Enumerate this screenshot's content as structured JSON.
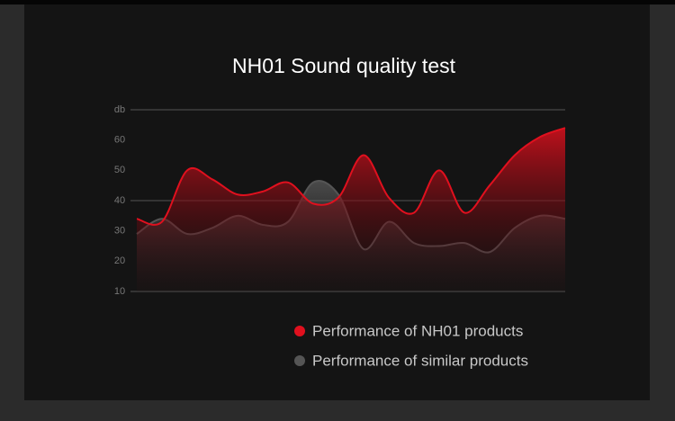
{
  "chart_data": {
    "type": "area",
    "title": "NH01 Sound quality test",
    "categories": [
      null,
      null,
      null,
      null,
      null,
      null,
      null,
      null,
      null,
      null,
      null,
      null,
      null,
      null,
      null,
      null,
      null,
      null
    ],
    "series": [
      {
        "name": "Performance of NH01 products",
        "color": "#e0101e",
        "values": [
          34,
          33,
          50,
          47,
          42,
          43,
          46,
          39,
          41,
          55,
          41,
          36,
          50,
          36,
          45,
          55,
          61,
          64
        ]
      },
      {
        "name": "Performance of similar products",
        "color": "#555555",
        "values": [
          29,
          34,
          29,
          31,
          35,
          32,
          33,
          46,
          42,
          24,
          33,
          26,
          25,
          26,
          23,
          31,
          35,
          34
        ]
      }
    ],
    "ylim": [
      10,
      70
    ],
    "yticks": [
      10,
      20,
      30,
      40,
      50,
      60,
      {
        "value": 70,
        "label": "db"
      }
    ],
    "gridlines": [
      10,
      40,
      70
    ],
    "legend": "bottom"
  }
}
